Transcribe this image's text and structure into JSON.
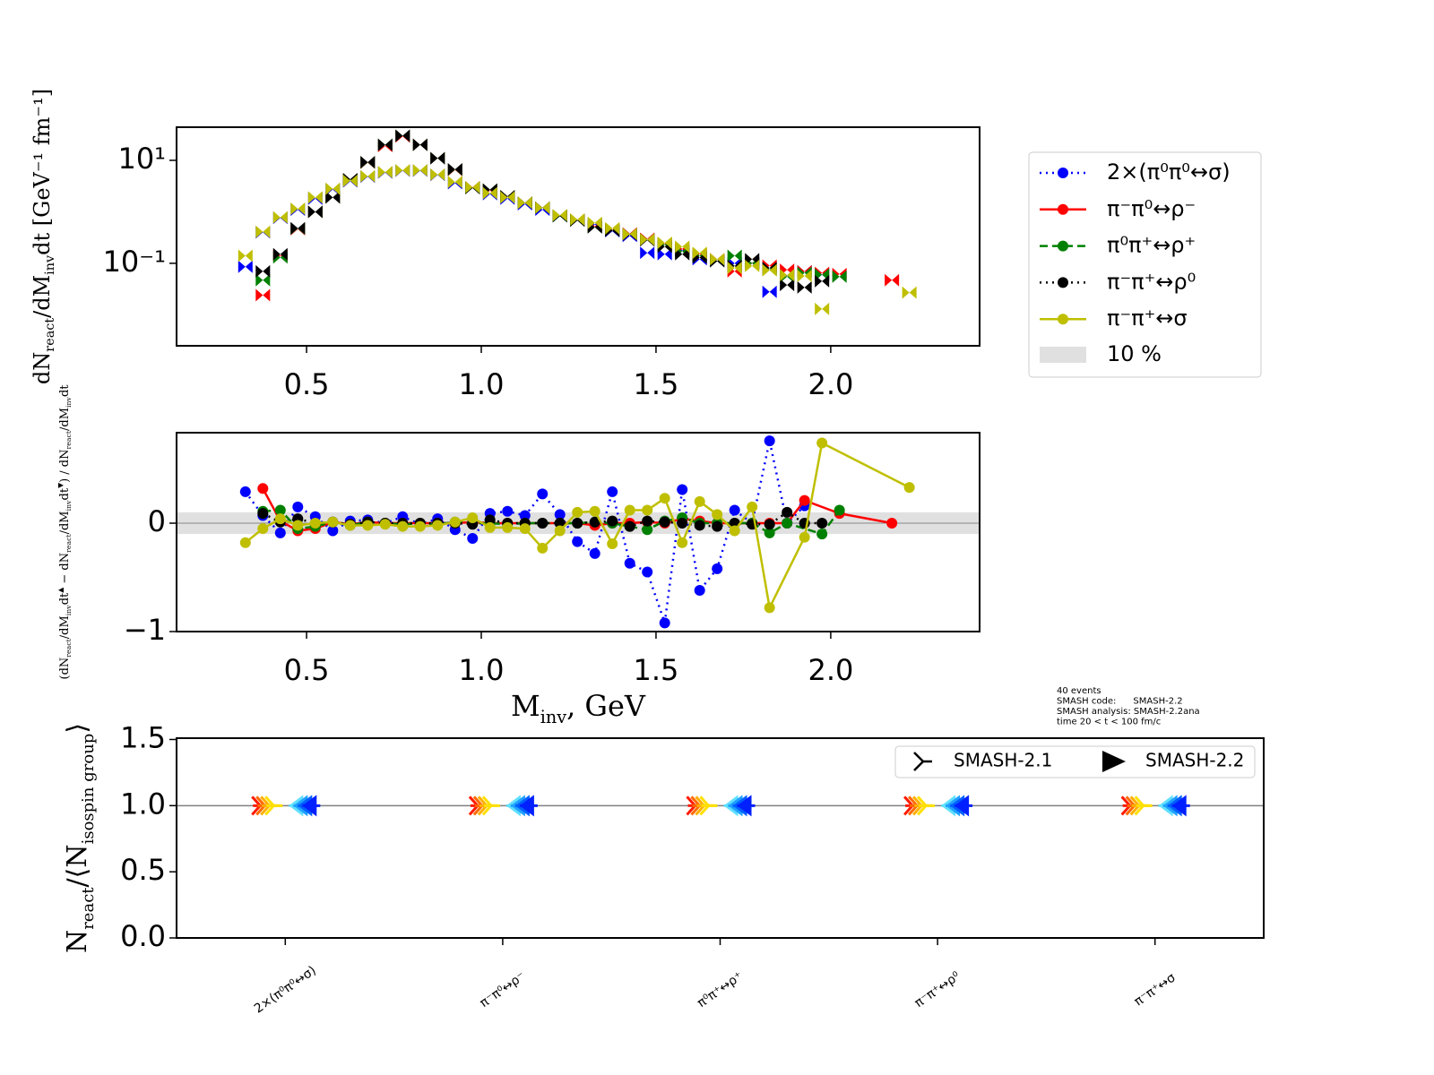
{
  "chart_data": [
    {
      "type": "scatter",
      "log_y": true,
      "legend": "outside right",
      "band_label": "10 %",
      "y_label": [
        {
          "text": "dN"
        },
        {
          "text": "react",
          "sub": true
        },
        {
          "text": "/dM"
        },
        {
          "text": "inv",
          "sub": true
        },
        {
          "text": "dt  [GeV⁻¹ fm⁻¹]"
        }
      ],
      "xlim": [
        0.128,
        2.426
      ],
      "ylim": [
        0.0025,
        44
      ],
      "xticks": [
        0.5,
        {
          "value": 1,
          "label": "1.0"
        },
        1.5,
        {
          "value": 2,
          "label": "2.0"
        }
      ],
      "yticks": [
        {
          "value": 0.1,
          "label": "10⁻¹"
        },
        {
          "value": 10,
          "label": "10¹"
        }
      ],
      "x": [
        0.325,
        0.375,
        0.425,
        0.475,
        0.525,
        0.575,
        0.625,
        0.675,
        0.725,
        0.775,
        0.825,
        0.875,
        0.925,
        0.975,
        1.025,
        1.075,
        1.125,
        1.175,
        1.225,
        1.275,
        1.325,
        1.375,
        1.425,
        1.475,
        1.525,
        1.575,
        1.625,
        1.675,
        1.725,
        1.775,
        1.825,
        1.875,
        1.925,
        1.975,
        2.025,
        2.075,
        2.125,
        2.175,
        2.225
      ],
      "series": [
        {
          "name": "2×(π⁰π⁰↔σ)",
          "color": "#0000ff",
          "linestyle": "dotted",
          "values": [
            0.086,
            0.4,
            0.76,
            1.1,
            1.8,
            2.7,
            3.9,
            4.8,
            5.8,
            6.3,
            6.3,
            5.2,
            3.6,
            2.9,
            2.2,
            1.8,
            1.4,
            1.1,
            0.82,
            0.68,
            0.57,
            0.42,
            0.34,
            0.16,
            0.15,
            0.18,
            0.12,
            0.11,
            0.1,
            0.1,
            0.028,
            0.058,
            0.07,
            0.06,
            null,
            null,
            null,
            null,
            null
          ]
        },
        {
          "name": "π⁻π⁰↔ρ⁻",
          "color": "#ff0000",
          "linestyle": "solid",
          "values": [
            null,
            0.024,
            0.14,
            0.46,
            1.0,
            1.9,
            4.2,
            9.0,
            19,
            29,
            20,
            11,
            6.5,
            3.0,
            2.6,
            2.0,
            1.5,
            1.2,
            0.84,
            0.7,
            0.52,
            0.45,
            0.38,
            0.3,
            0.24,
            0.19,
            0.15,
            0.12,
            0.07,
            0.1,
            0.09,
            0.075,
            0.07,
            0.065,
            0.062,
            null,
            null,
            0.047,
            null
          ]
        },
        {
          "name": "π⁰π⁺↔ρ⁺",
          "color": "#008000",
          "linestyle": "dashed",
          "values": [
            null,
            0.047,
            0.13,
            0.47,
            1.0,
            1.9,
            4.2,
            9.1,
            20,
            30,
            20,
            11,
            6.6,
            2.9,
            2.7,
            2.0,
            1.5,
            1.2,
            0.82,
            0.68,
            0.5,
            0.44,
            0.37,
            0.29,
            0.23,
            0.17,
            0.14,
            0.11,
            0.14,
            0.1,
            0.075,
            0.055,
            0.065,
            0.06,
            0.055,
            null,
            null,
            null,
            null
          ]
        },
        {
          "name": "π⁻π⁺↔ρ⁰",
          "color": "#000000",
          "linestyle": "dotted",
          "values": [
            null,
            0.07,
            0.15,
            0.48,
            1.0,
            1.9,
            4.3,
            9.2,
            20,
            30,
            20,
            11,
            6.7,
            2.9,
            2.7,
            2.0,
            1.5,
            1.2,
            0.83,
            0.68,
            0.5,
            0.43,
            0.36,
            0.28,
            0.21,
            0.15,
            0.13,
            0.11,
            0.089,
            0.12,
            0.081,
            0.038,
            0.034,
            0.045,
            null,
            null,
            null,
            null,
            null
          ]
        },
        {
          "name": "π⁻π⁺↔σ",
          "color": "#bfbf00",
          "linestyle": "solid",
          "values": [
            0.14,
            0.41,
            0.78,
            1.15,
            1.9,
            2.8,
            4.0,
            4.9,
            5.9,
            6.4,
            6.4,
            5.3,
            3.8,
            3.0,
            2.3,
            1.9,
            1.5,
            1.2,
            0.86,
            0.71,
            0.61,
            0.48,
            0.37,
            0.29,
            0.25,
            0.21,
            0.16,
            0.12,
            0.081,
            0.089,
            0.073,
            0.059,
            0.057,
            0.013,
            null,
            null,
            null,
            null,
            0.027
          ]
        }
      ]
    },
    {
      "type": "line",
      "band": [
        -0.1,
        0.1
      ],
      "x_label": [
        {
          "text": "M"
        },
        {
          "text": "inv",
          "sub": true
        },
        {
          "text": ", GeV"
        }
      ],
      "y_label": [
        {
          "text": "(dN"
        },
        {
          "text": "react",
          "sub": true
        },
        {
          "text": "/dM"
        },
        {
          "text": "inv",
          "sub": true
        },
        {
          "text": "dt"
        },
        {
          "text": "▲",
          "sup": true
        },
        {
          "text": " − dN"
        },
        {
          "text": "react",
          "sub": true
        },
        {
          "text": "/dM"
        },
        {
          "text": "inv",
          "sub": true
        },
        {
          "text": "dt"
        },
        {
          "text": "▼",
          "sup": true
        },
        {
          "text": ") / dN"
        },
        {
          "text": "react",
          "sub": true
        },
        {
          "text": "/dM"
        },
        {
          "text": "inv",
          "sub": true
        },
        {
          "text": "dt"
        }
      ],
      "xlim": [
        0.128,
        2.426
      ],
      "ylim": [
        -1,
        0.835
      ],
      "xticks": [
        0.5,
        {
          "value": 1,
          "label": "1.0"
        },
        1.5,
        {
          "value": 2,
          "label": "2.0"
        }
      ],
      "yticks": [
        {
          "value": -1,
          "label": "−1"
        },
        0
      ],
      "series": [
        {
          "color": "#0000ff",
          "linestyle": "dotted",
          "x": [
            0.325,
            0.375,
            0.425,
            0.475,
            0.525,
            0.575,
            0.625,
            0.675,
            0.725,
            0.775,
            0.825,
            0.875,
            0.925,
            0.975,
            1.025,
            1.075,
            1.125,
            1.175,
            1.225,
            1.275,
            1.325,
            1.375,
            1.425,
            1.475,
            1.525,
            1.575,
            1.625,
            1.675,
            1.725,
            1.775,
            1.825,
            1.875,
            1.925
          ],
          "values": [
            0.29,
            0.07,
            -0.09,
            0.15,
            0.06,
            -0.07,
            0.02,
            0.03,
            0,
            0.06,
            -0.01,
            0.04,
            -0.06,
            -0.14,
            0.09,
            0.11,
            0.07,
            0.27,
            0.08,
            -0.17,
            -0.28,
            0.29,
            -0.37,
            -0.45,
            -0.92,
            0.31,
            -0.62,
            -0.42,
            0.12,
            0,
            0.76,
            0,
            0.16
          ]
        },
        {
          "color": "#ff0000",
          "linestyle": "solid",
          "x": [
            0.375,
            0.425,
            0.475,
            0.525,
            0.575,
            0.625,
            0.675,
            0.725,
            0.775,
            0.825,
            0.875,
            0.925,
            0.975,
            1.025,
            1.075,
            1.125,
            1.175,
            1.225,
            1.275,
            1.325,
            1.375,
            1.425,
            1.475,
            1.525,
            1.575,
            1.625,
            1.675,
            1.725,
            1.775,
            1.825,
            1.875,
            1.925,
            2.025,
            2.175
          ],
          "values": [
            0.32,
            0.02,
            -0.07,
            -0.05,
            0.01,
            -0.01,
            0.01,
            0,
            0,
            0,
            0,
            0,
            0.01,
            0,
            0,
            0,
            0,
            0,
            0,
            -0.02,
            0,
            0,
            0.01,
            0,
            0.04,
            0.02,
            0,
            0,
            0,
            0,
            0,
            0.21,
            0.09,
            0
          ]
        },
        {
          "color": "#008000",
          "linestyle": "dashed",
          "x": [
            0.375,
            0.425,
            0.475,
            0.525,
            0.575,
            0.625,
            0.675,
            0.725,
            0.775,
            0.825,
            0.875,
            0.925,
            0.975,
            1.025,
            1.075,
            1.125,
            1.175,
            1.225,
            1.275,
            1.325,
            1.375,
            1.425,
            1.475,
            1.525,
            1.575,
            1.625,
            1.675,
            1.725,
            1.775,
            1.825,
            1.875,
            1.975,
            2.025
          ],
          "values": [
            0.11,
            0.12,
            -0.05,
            -0.03,
            0.01,
            -0.02,
            0.01,
            0,
            -0.01,
            0,
            -0.01,
            0.01,
            0,
            0,
            -0.01,
            0,
            0,
            0,
            0,
            0.01,
            0,
            -0.03,
            -0.06,
            0.02,
            0.05,
            0,
            0,
            0,
            0,
            -0.09,
            0,
            -0.1,
            0.12
          ]
        },
        {
          "color": "#000000",
          "linestyle": "dotted",
          "x": [
            0.375,
            0.425,
            0.475,
            0.525,
            0.575,
            0.625,
            0.675,
            0.725,
            0.775,
            0.825,
            0.875,
            0.925,
            0.975,
            1.025,
            1.075,
            1.125,
            1.175,
            1.225,
            1.275,
            1.325,
            1.375,
            1.425,
            1.475,
            1.525,
            1.575,
            1.625,
            1.675,
            1.725,
            1.775,
            1.825,
            1.875,
            1.925,
            1.975
          ],
          "values": [
            0.09,
            0.01,
            0.04,
            0,
            0.01,
            -0.01,
            0.01,
            0,
            0,
            0,
            0,
            0,
            -0.01,
            0.03,
            0,
            0,
            0,
            0,
            0,
            0.01,
            0.02,
            -0.03,
            0.02,
            0.01,
            0,
            -0.02,
            -0.03,
            0,
            -0.01,
            -0.01,
            0.1,
            0,
            0
          ]
        },
        {
          "color": "#bfbf00",
          "linestyle": "solid",
          "x": [
            0.325,
            0.375,
            0.425,
            0.475,
            0.525,
            0.575,
            0.625,
            0.675,
            0.725,
            0.775,
            0.825,
            0.875,
            0.925,
            0.975,
            1.025,
            1.075,
            1.125,
            1.175,
            1.225,
            1.275,
            1.325,
            1.375,
            1.425,
            1.475,
            1.525,
            1.575,
            1.625,
            1.675,
            1.725,
            1.775,
            1.825,
            1.925,
            1.975,
            2.225
          ],
          "values": [
            -0.18,
            -0.05,
            0.04,
            -0.02,
            0,
            0.01,
            -0.02,
            -0.02,
            -0.01,
            -0.03,
            -0.03,
            -0.02,
            0.01,
            0.05,
            -0.04,
            -0.04,
            -0.05,
            -0.23,
            -0.07,
            0.1,
            0.11,
            -0.19,
            0.12,
            0.12,
            0.23,
            -0.18,
            0.2,
            0.08,
            -0.07,
            0.15,
            -0.78,
            -0.13,
            0.74,
            0.33
          ]
        }
      ]
    },
    {
      "type": "marker",
      "legend": "upper right",
      "reference_line": 1,
      "y_label": [
        {
          "text": "N"
        },
        {
          "text": "react",
          "sub": true
        },
        {
          "text": "/⟨N"
        },
        {
          "text": "isospin group",
          "sub": true
        },
        {
          "text": "⟩"
        }
      ],
      "annotation": [
        "40 events",
        "SMASH code:      SMASH-2.2",
        "SMASH analysis: SMASH-2.2ana",
        "time 20 < t < 100 fm/c"
      ],
      "categories": [
        "2×(π⁰π⁰↔σ)",
        "π⁻π⁰↔ρ⁻",
        "π⁰π⁺↔ρ⁺",
        "π⁻π⁺↔ρ⁰",
        "π⁻π⁺↔σ"
      ],
      "ylim": [
        0,
        1.51
      ],
      "yticks": [
        {
          "value": 0,
          "label": "0.0"
        },
        0.5,
        {
          "value": 1,
          "label": "1.0"
        },
        1.5
      ],
      "series": [
        {
          "name": "SMASH-2.1",
          "values": [
            1,
            1,
            1,
            1,
            1
          ]
        },
        {
          "name": "SMASH-2.2",
          "values": [
            1,
            1,
            1,
            1,
            1
          ]
        }
      ]
    }
  ]
}
